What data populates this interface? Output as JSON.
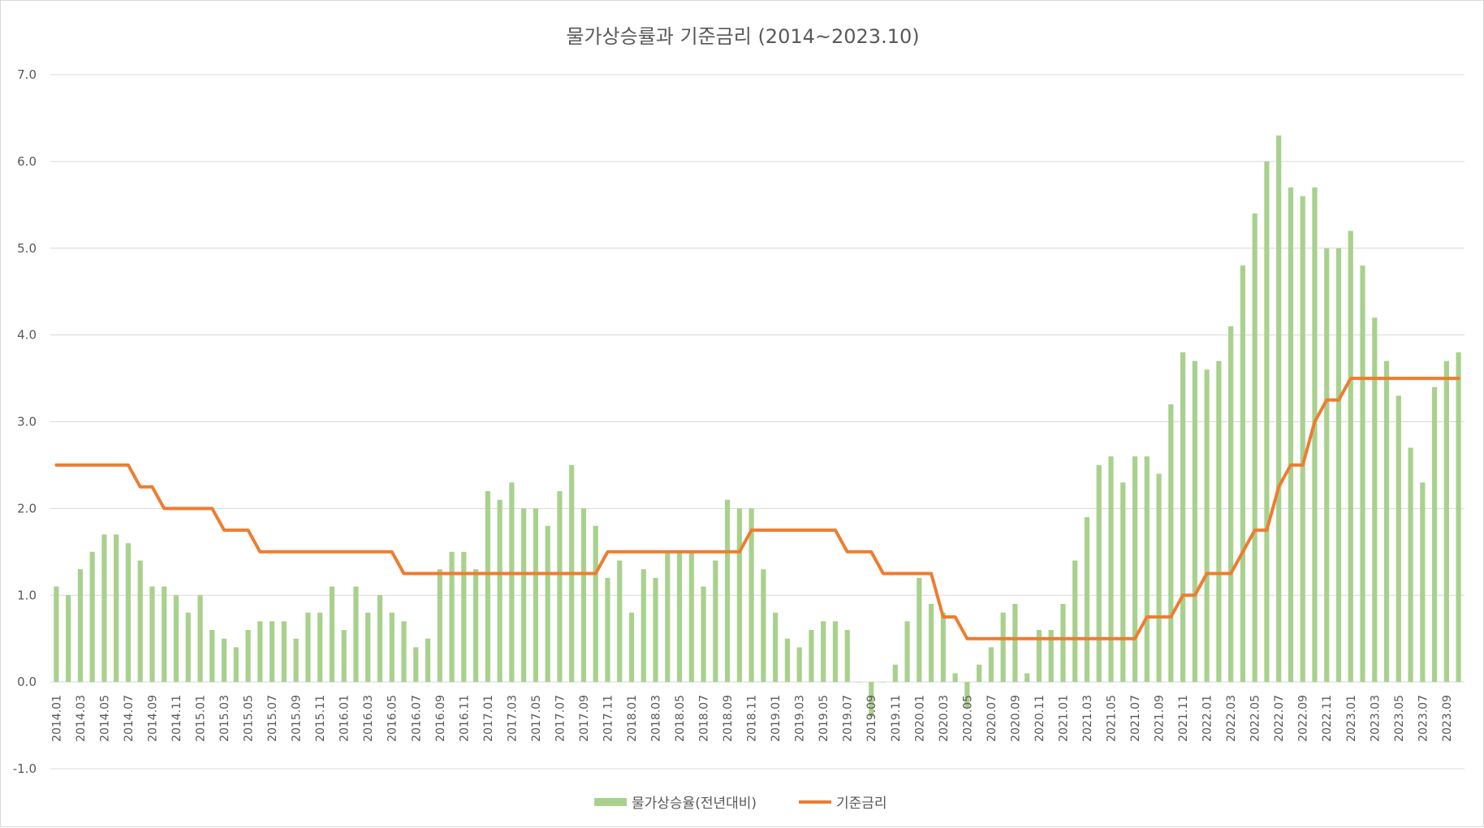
{
  "chart_data": {
    "type": "bar",
    "title": "물가상승률과 기준금리 (2014~2023.10)",
    "ylim": [
      -1.0,
      7.0
    ],
    "yticks": [
      "-1.0",
      "0.0",
      "1.0",
      "2.0",
      "3.0",
      "4.0",
      "5.0",
      "6.0",
      "7.0"
    ],
    "grid": true,
    "legend_position": "bottom",
    "categories": [
      "2014.01",
      "2014.02",
      "2014.03",
      "2014.04",
      "2014.05",
      "2014.06",
      "2014.07",
      "2014.08",
      "2014.09",
      "2014.10",
      "2014.11",
      "2014.12",
      "2015.01",
      "2015.02",
      "2015.03",
      "2015.04",
      "2015.05",
      "2015.06",
      "2015.07",
      "2015.08",
      "2015.09",
      "2015.10",
      "2015.11",
      "2015.12",
      "2016.01",
      "2016.02",
      "2016.03",
      "2016.04",
      "2016.05",
      "2016.06",
      "2016.07",
      "2016.08",
      "2016.09",
      "2016.10",
      "2016.11",
      "2016.12",
      "2017.01",
      "2017.02",
      "2017.03",
      "2017.04",
      "2017.05",
      "2017.06",
      "2017.07",
      "2017.08",
      "2017.09",
      "2017.10",
      "2017.11",
      "2017.12",
      "2018.01",
      "2018.02",
      "2018.03",
      "2018.04",
      "2018.05",
      "2018.06",
      "2018.07",
      "2018.08",
      "2018.09",
      "2018.10",
      "2018.11",
      "2018.12",
      "2019.01",
      "2019.02",
      "2019.03",
      "2019.04",
      "2019.05",
      "2019.06",
      "2019.07",
      "2019.08",
      "2019.09",
      "2019.10",
      "2019.11",
      "2019.12",
      "2020.01",
      "2020.02",
      "2020.03",
      "2020.04",
      "2020.05",
      "2020.06",
      "2020.07",
      "2020.08",
      "2020.09",
      "2020.10",
      "2020.11",
      "2020.12",
      "2021.01",
      "2021.02",
      "2021.03",
      "2021.04",
      "2021.05",
      "2021.06",
      "2021.07",
      "2021.08",
      "2021.09",
      "2021.10",
      "2021.11",
      "2021.12",
      "2022.01",
      "2022.02",
      "2022.03",
      "2022.04",
      "2022.05",
      "2022.06",
      "2022.07",
      "2022.08",
      "2022.09",
      "2022.10",
      "2022.11",
      "2022.12",
      "2023.01",
      "2023.02",
      "2023.03",
      "2023.04",
      "2023.05",
      "2023.06",
      "2023.07",
      "2023.08",
      "2023.09",
      "2023.10"
    ],
    "series": [
      {
        "name": "물가상승율(전년대비)",
        "type": "bar",
        "color": "#a9d18e",
        "values": [
          1.1,
          1.0,
          1.3,
          1.5,
          1.7,
          1.7,
          1.6,
          1.4,
          1.1,
          1.1,
          1.0,
          0.8,
          1.0,
          0.6,
          0.5,
          0.4,
          0.6,
          0.7,
          0.7,
          0.7,
          0.5,
          0.8,
          0.8,
          1.1,
          0.6,
          1.1,
          0.8,
          1.0,
          0.8,
          0.7,
          0.4,
          0.5,
          1.3,
          1.5,
          1.5,
          1.3,
          2.2,
          2.1,
          2.3,
          2.0,
          2.0,
          1.8,
          2.2,
          2.5,
          2.0,
          1.8,
          1.2,
          1.4,
          0.8,
          1.3,
          1.2,
          1.5,
          1.5,
          1.5,
          1.1,
          1.4,
          2.1,
          2.0,
          2.0,
          1.3,
          0.8,
          0.5,
          0.4,
          0.6,
          0.7,
          0.7,
          0.6,
          0.0,
          -0.4,
          0.0,
          0.2,
          0.7,
          1.2,
          0.9,
          0.8,
          0.1,
          -0.3,
          0.2,
          0.4,
          0.8,
          0.9,
          0.1,
          0.6,
          0.6,
          0.9,
          1.4,
          1.9,
          2.5,
          2.6,
          2.3,
          2.6,
          2.6,
          2.4,
          3.2,
          3.8,
          3.7,
          3.6,
          3.7,
          4.1,
          4.8,
          5.4,
          6.0,
          6.3,
          5.7,
          5.6,
          5.7,
          5.0,
          5.0,
          5.2,
          4.8,
          4.2,
          3.7,
          3.3,
          2.7,
          2.3,
          3.4,
          3.7,
          3.8
        ]
      },
      {
        "name": "기준금리",
        "type": "line",
        "color": "#ed7d31",
        "values": [
          2.5,
          2.5,
          2.5,
          2.5,
          2.5,
          2.5,
          2.5,
          2.25,
          2.25,
          2.0,
          2.0,
          2.0,
          2.0,
          2.0,
          1.75,
          1.75,
          1.75,
          1.5,
          1.5,
          1.5,
          1.5,
          1.5,
          1.5,
          1.5,
          1.5,
          1.5,
          1.5,
          1.5,
          1.5,
          1.25,
          1.25,
          1.25,
          1.25,
          1.25,
          1.25,
          1.25,
          1.25,
          1.25,
          1.25,
          1.25,
          1.25,
          1.25,
          1.25,
          1.25,
          1.25,
          1.25,
          1.5,
          1.5,
          1.5,
          1.5,
          1.5,
          1.5,
          1.5,
          1.5,
          1.5,
          1.5,
          1.5,
          1.5,
          1.75,
          1.75,
          1.75,
          1.75,
          1.75,
          1.75,
          1.75,
          1.75,
          1.5,
          1.5,
          1.5,
          1.25,
          1.25,
          1.25,
          1.25,
          1.25,
          0.75,
          0.75,
          0.5,
          0.5,
          0.5,
          0.5,
          0.5,
          0.5,
          0.5,
          0.5,
          0.5,
          0.5,
          0.5,
          0.5,
          0.5,
          0.5,
          0.5,
          0.75,
          0.75,
          0.75,
          1.0,
          1.0,
          1.25,
          1.25,
          1.25,
          1.5,
          1.75,
          1.75,
          2.25,
          2.5,
          2.5,
          3.0,
          3.25,
          3.25,
          3.5,
          3.5,
          3.5,
          3.5,
          3.5,
          3.5,
          3.5,
          3.5,
          3.5,
          3.5
        ]
      }
    ]
  }
}
